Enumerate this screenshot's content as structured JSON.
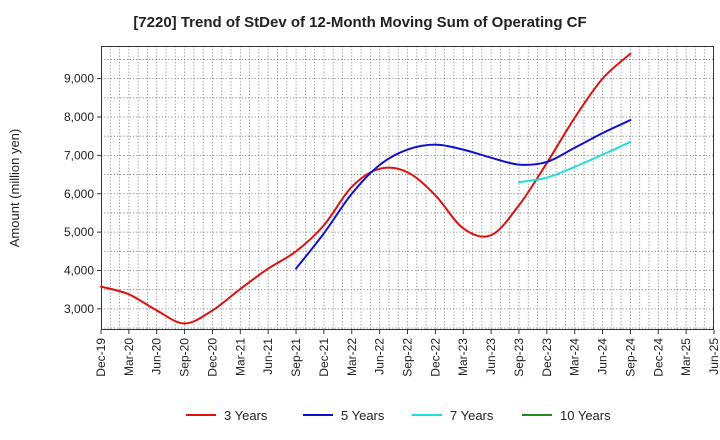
{
  "chart_data": {
    "type": "line",
    "title": "[7220]  Trend of StDev of 12-Month Moving Sum of Operating CF",
    "xlabel": "",
    "ylabel": "Amount (million yen)",
    "ylim": [
      2450,
      9850
    ],
    "yticks": [
      3000,
      4000,
      5000,
      6000,
      7000,
      8000,
      9000
    ],
    "ytick_labels": [
      "3,000",
      "4,000",
      "5,000",
      "6,000",
      "7,000",
      "8,000",
      "9,000"
    ],
    "x_categories": [
      "Dec-19",
      "Mar-20",
      "Jun-20",
      "Sep-20",
      "Dec-20",
      "Mar-21",
      "Jun-21",
      "Sep-21",
      "Dec-21",
      "Mar-22",
      "Jun-22",
      "Sep-22",
      "Dec-22",
      "Mar-23",
      "Jun-23",
      "Sep-23",
      "Dec-23",
      "Mar-24",
      "Jun-24",
      "Sep-24",
      "Dec-24",
      "Mar-25"
    ],
    "x_ticks": [
      "Dec-19",
      "Mar-20",
      "Jun-20",
      "Sep-20",
      "Dec-20",
      "Mar-21",
      "Jun-21",
      "Sep-21",
      "Dec-21",
      "Mar-22",
      "Jun-22",
      "Sep-22",
      "Dec-22",
      "Mar-23",
      "Jun-23",
      "Sep-23",
      "Dec-23",
      "Mar-24",
      "Jun-24",
      "Sep-24",
      "Dec-24",
      "Mar-25",
      "Jun-25"
    ],
    "grid": true,
    "legend_position": "bottom",
    "series": [
      {
        "name": "3 Years",
        "color": "#dd1111",
        "values": [
          3580,
          3380,
          2960,
          2620,
          2960,
          3520,
          4050,
          4500,
          5180,
          6180,
          6650,
          6560,
          5960,
          5100,
          4920,
          5700,
          6800,
          7980,
          9000,
          9650,
          null,
          null
        ]
      },
      {
        "name": "5 Years",
        "color": "#1111cc",
        "values": [
          null,
          null,
          null,
          null,
          null,
          null,
          null,
          4050,
          4970,
          6000,
          6750,
          7150,
          7280,
          7150,
          6940,
          6760,
          6830,
          7200,
          7580,
          7920,
          null,
          null
        ]
      },
      {
        "name": "7 Years",
        "color": "#22dddd",
        "values": [
          null,
          null,
          null,
          null,
          null,
          null,
          null,
          null,
          null,
          null,
          null,
          null,
          null,
          null,
          null,
          6300,
          6420,
          6700,
          7020,
          7350,
          null,
          null
        ]
      },
      {
        "name": "10 Years",
        "color": "#228822",
        "values": [
          null,
          null,
          null,
          null,
          null,
          null,
          null,
          null,
          null,
          null,
          null,
          null,
          null,
          null,
          null,
          null,
          null,
          null,
          null,
          null,
          null,
          null
        ]
      }
    ]
  }
}
